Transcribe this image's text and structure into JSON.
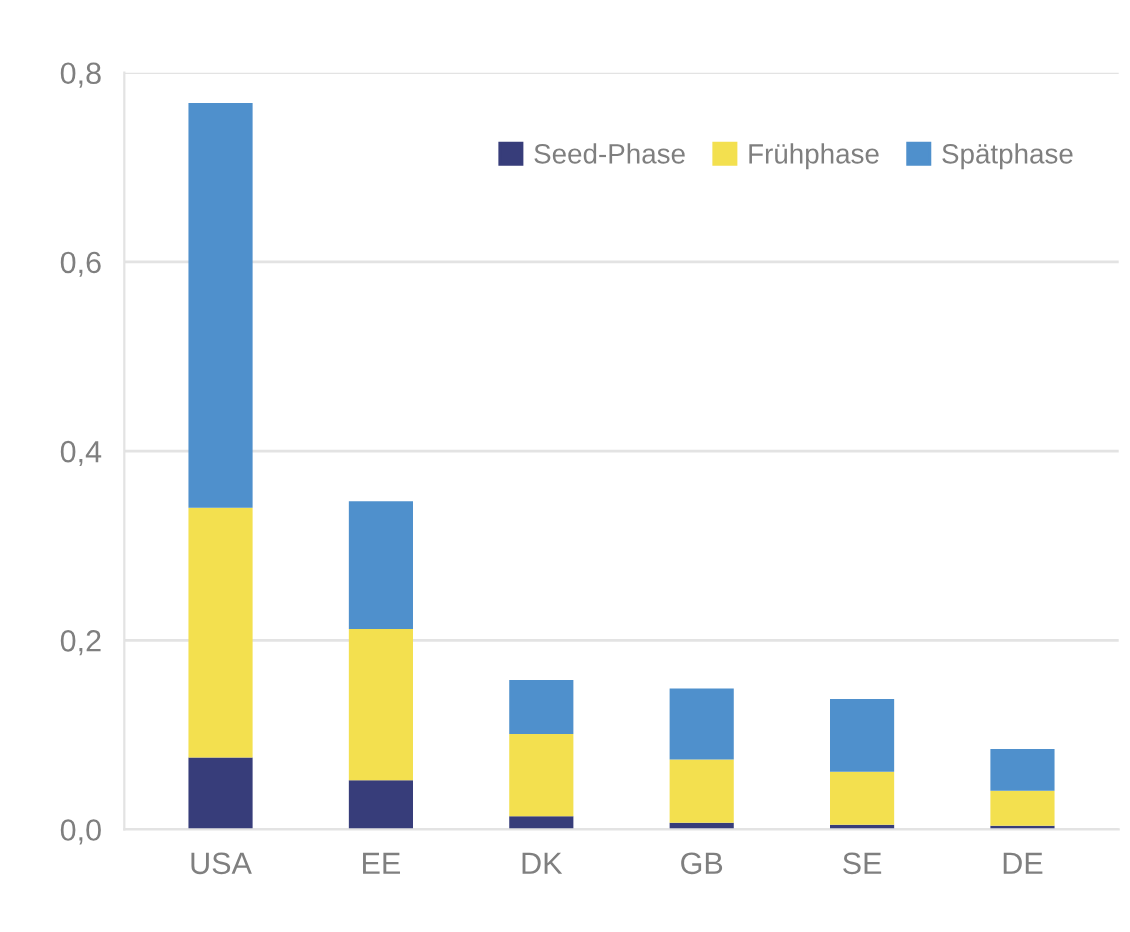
{
  "chart_data": {
    "type": "bar",
    "stacked": true,
    "categories": [
      "USA",
      "EE",
      "DK",
      "GB",
      "SE",
      "DE"
    ],
    "series": [
      {
        "name": "Seed-Phase",
        "color": "#373d7a",
        "values": [
          0.076,
          0.052,
          0.014,
          0.007,
          0.005,
          0.004
        ]
      },
      {
        "name": "Frühphase",
        "color": "#f3e04f",
        "values": [
          0.264,
          0.16,
          0.087,
          0.067,
          0.056,
          0.037
        ]
      },
      {
        "name": "Spätphase",
        "color": "#4f90cc",
        "values": [
          0.428,
          0.135,
          0.057,
          0.075,
          0.077,
          0.044
        ]
      }
    ],
    "ylim": [
      0,
      0.8
    ],
    "yticks": [
      {
        "value": 0,
        "label": "0,0"
      },
      {
        "value": 0.2,
        "label": "0,2"
      },
      {
        "value": 0.4,
        "label": "0,4"
      },
      {
        "value": 0.6,
        "label": "0,6"
      },
      {
        "value": 0.8,
        "label": "0,8"
      }
    ],
    "grid": "y",
    "legend": "top right"
  }
}
